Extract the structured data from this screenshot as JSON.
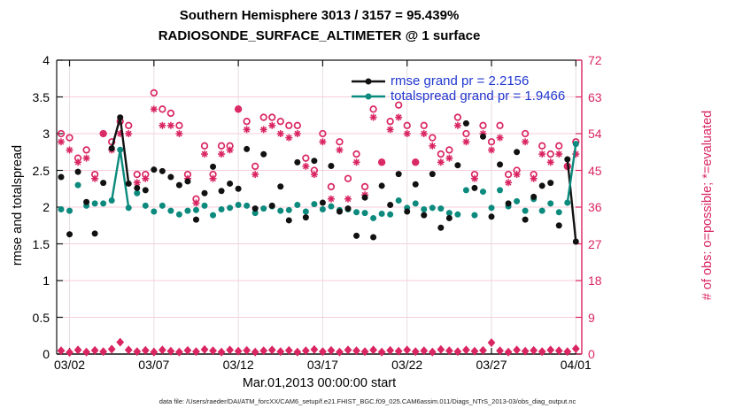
{
  "figure": {
    "title_line1": "Southern Hemisphere 3013 / 3157 = 95.439%",
    "title_line2": "RADIOSONDE_SURFACE_ALTIMETER @ 1 surface",
    "xlabel": "Mar.01,2013 00:00:00 start",
    "footer": "data file: /Users/raeder/DAI/ATM_forcXX/CAM6_setup/f.e21.FHIST_BGC.f09_025.CAM6assim.011/Diags_NTrS_2013-03/obs_diag_output.nc"
  },
  "colors": {
    "pink": "#d92561",
    "teal": "#0c8a7d",
    "black": "#111111",
    "legend_text_blue": "#2138cf",
    "grid_horizontal": "#f6cdd9",
    "grid_vertical": "#e7dede"
  },
  "legend": {
    "entries": [
      {
        "label": "rmse grand pr = 2.2156",
        "series": "rmse"
      },
      {
        "label": "totalspread grand pr = 1.9466",
        "series": "totalspread"
      }
    ]
  },
  "chart_data": {
    "type": "line",
    "title": "Southern Hemisphere 3013 / 3157 = 95.439%",
    "subtitle": "RADIOSONDE_SURFACE_ALTIMETER @ 1 surface",
    "xlabel": "Mar.01,2013 00:00:00 start",
    "x_ticklabels": [
      "03/02",
      "03/07",
      "03/12",
      "03/17",
      "03/22",
      "03/27",
      "04/01"
    ],
    "x_tick_bins": [
      1,
      11,
      21,
      31,
      41,
      51,
      61
    ],
    "time_bins": {
      "start": "Mar.01,2013 12:00",
      "step_hours": 12,
      "count": 62
    },
    "left_axis": {
      "label": "rmse and totalspread",
      "range": [
        0,
        4
      ],
      "ticks": [
        0,
        0.5,
        1,
        1.5,
        2,
        2.5,
        3,
        3.5,
        4
      ],
      "ticklabels": [
        "0",
        "0.5",
        "1",
        "1.5",
        "2",
        "2.5",
        "3",
        "3.5",
        "4"
      ]
    },
    "right_axis": {
      "label": "# of obs: o=possible; *=evaluated",
      "range": [
        0,
        72
      ],
      "ticks": [
        0,
        9,
        18,
        27,
        36,
        45,
        54,
        63,
        72
      ],
      "ticklabels": [
        "0",
        "9",
        "18",
        "27",
        "36",
        "45",
        "54",
        "63",
        "72"
      ]
    },
    "grid": true,
    "legend_position": "inside-top-right",
    "series": [
      {
        "name": "rmse",
        "axis": "left",
        "marker": "filled-circle",
        "color_key": "black",
        "grand_mean": 2.2156,
        "values": [
          2.41,
          1.63,
          2.48,
          2.07,
          1.64,
          2.33,
          2.8,
          3.22,
          2.32,
          2.26,
          2.23,
          2.51,
          2.49,
          2.41,
          2.3,
          2.35,
          1.83,
          2.19,
          2.55,
          2.22,
          2.32,
          2.25,
          2.79,
          1.98,
          2.72,
          2.02,
          2.28,
          1.82,
          2.61,
          1.86,
          2.63,
          2.06,
          2.56,
          1.94,
          1.98,
          1.61,
          2.13,
          1.59,
          2.29,
          2.03,
          2.45,
          1.94,
          2.31,
          1.89,
          2.45,
          1.72,
          1.85,
          2.57,
          3.14,
          2.26,
          2.96,
          1.87,
          2.58,
          2.05,
          2.75,
          1.83,
          2.14,
          2.29,
          2.33,
          1.75,
          2.65,
          1.53
        ]
      },
      {
        "name": "totalspread",
        "axis": "left",
        "marker": "filled-circle",
        "color_key": "teal",
        "grand_mean": 1.9466,
        "values": [
          1.97,
          1.95,
          2.3,
          2.02,
          2.05,
          2.05,
          2.09,
          2.78,
          1.99,
          2.19,
          2.02,
          1.94,
          2.02,
          1.95,
          1.9,
          1.95,
          1.96,
          2.02,
          1.89,
          1.97,
          1.99,
          2.03,
          2.02,
          1.92,
          1.98,
          2.01,
          1.95,
          1.96,
          2.03,
          1.94,
          2.04,
          1.97,
          2.01,
          1.96,
          1.97,
          1.93,
          1.92,
          1.85,
          1.91,
          1.9,
          2.09,
          1.99,
          2.05,
          1.97,
          1.99,
          1.98,
          1.92,
          1.9,
          2.23,
          1.89,
          2.21,
          1.99,
          2.23,
          2.01,
          2.08,
          1.95,
          2.11,
          1.95,
          2.05,
          1.93,
          2.06,
          2.86
        ]
      },
      {
        "name": "possible",
        "axis": "right",
        "marker": "open-circle",
        "color_key": "pink",
        "total": 3157,
        "values": [
          54,
          53,
          48,
          50,
          44,
          54,
          52,
          57,
          56,
          44,
          44,
          64,
          60,
          59,
          56,
          44,
          38,
          51,
          44,
          51,
          51,
          60,
          57,
          46,
          58,
          58,
          57,
          56,
          56,
          48,
          45,
          54,
          41,
          52,
          43,
          49,
          41,
          60,
          47,
          57,
          61,
          56,
          47,
          56,
          53,
          49,
          50,
          58,
          54,
          44,
          56,
          52,
          56,
          44,
          45,
          54,
          44,
          51,
          49,
          51,
          46,
          52
        ]
      },
      {
        "name": "evaluated",
        "axis": "right",
        "marker": "asterisk",
        "color_key": "pink",
        "total": 3013,
        "values": [
          52,
          50,
          47,
          48,
          43,
          54,
          50,
          54,
          54,
          42,
          43,
          60,
          56,
          56,
          54,
          43,
          37,
          49,
          43,
          49,
          50,
          60,
          55,
          44,
          55,
          56,
          54,
          53,
          54,
          46,
          44,
          52,
          38,
          50,
          38,
          47,
          39,
          58,
          47,
          55,
          58,
          54,
          47,
          54,
          51,
          47,
          48,
          56,
          52,
          43,
          54,
          50,
          53,
          42,
          44,
          52,
          43,
          49,
          47,
          49,
          46,
          49
        ]
      },
      {
        "name": "near-zero-count-row",
        "axis": "right",
        "marker": "diamond",
        "color_key": "pink",
        "values": [
          0.8,
          0.4,
          1.0,
          0.5,
          0.9,
          0.6,
          1.2,
          2.9,
          1.0,
          0.6,
          0.9,
          0.5,
          1.0,
          0.7,
          0.5,
          0.9,
          0.6,
          1.1,
          0.8,
          0.5,
          1.0,
          0.7,
          0.9,
          0.5,
          0.8,
          1.0,
          0.6,
          0.9,
          0.5,
          0.8,
          1.1,
          0.6,
          0.9,
          0.5,
          1.0,
          0.8,
          0.6,
          1.0,
          0.5,
          0.9,
          0.7,
          1.0,
          0.6,
          0.8,
          0.5,
          1.1,
          0.8,
          0.6,
          1.0,
          0.7,
          0.9,
          2.8,
          0.8,
          0.5,
          1.0,
          0.7,
          0.9,
          0.6,
          1.0,
          0.8,
          0.6,
          1.3
        ]
      }
    ],
    "visible_line_segments": {
      "rmse": [
        [
          6,
          7
        ],
        [
          7,
          8
        ],
        [
          60,
          61
        ]
      ],
      "totalspread": [
        [
          6,
          7
        ],
        [
          7,
          8
        ],
        [
          60,
          61
        ]
      ]
    }
  }
}
